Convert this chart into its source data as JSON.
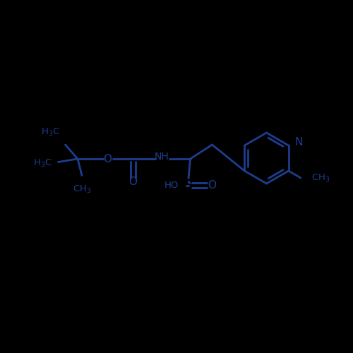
{
  "bg_color": "#000000",
  "line_color": "#1e3d8f",
  "text_color": "#1e3d8f",
  "line_width": 2.0,
  "font_size": 9.5,
  "figsize": [
    5.0,
    5.0
  ],
  "dpi": 100,
  "xlim": [
    0,
    10
  ],
  "ylim": [
    0,
    10
  ]
}
